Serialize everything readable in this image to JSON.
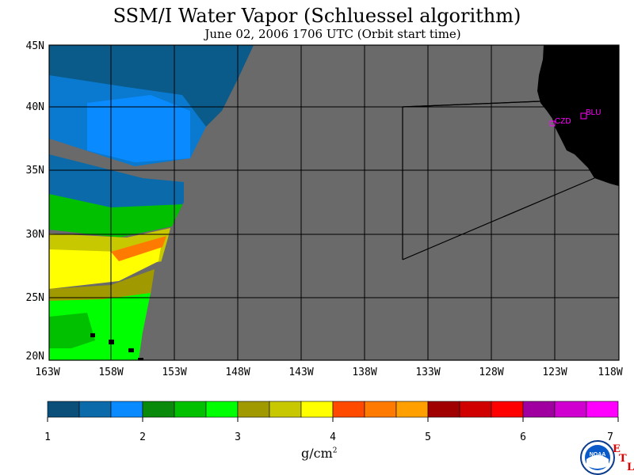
{
  "title": "SSM/I Water Vapor (Schluessel algorithm)",
  "subtitle": "June 02, 2006  1706 UTC  (Orbit start time)",
  "map": {
    "lat_labels": [
      "45N",
      "40N",
      "35N",
      "30N",
      "25N",
      "20N"
    ],
    "lon_labels": [
      "163W",
      "158W",
      "153W",
      "148W",
      "143W",
      "138W",
      "133W",
      "128W",
      "123W",
      "118W"
    ],
    "stations": [
      {
        "id": "cZD",
        "label": "CZD"
      },
      {
        "id": "blu",
        "label": "BLU"
      }
    ],
    "colors": {
      "no_data": "#6a6a6a",
      "land": "#000000",
      "station": "#ff00ff"
    }
  },
  "colorbar": {
    "colors": [
      "#0a4f7a",
      "#0a6aaa",
      "#0a8aff",
      "#0a8a0a",
      "#00c000",
      "#00ff00",
      "#a09a00",
      "#c8c800",
      "#ffff00",
      "#ff4a00",
      "#ff7a00",
      "#ffa000",
      "#a00000",
      "#d00000",
      "#ff0000",
      "#a000a0",
      "#d000d0",
      "#ff00ff"
    ],
    "ticks": [
      "1",
      "2",
      "3",
      "4",
      "5",
      "6",
      "7"
    ],
    "units": "g/cm",
    "units_sup": "2"
  },
  "logo": {
    "text": "NOAA",
    "etl": [
      "E",
      "T",
      "L"
    ]
  }
}
